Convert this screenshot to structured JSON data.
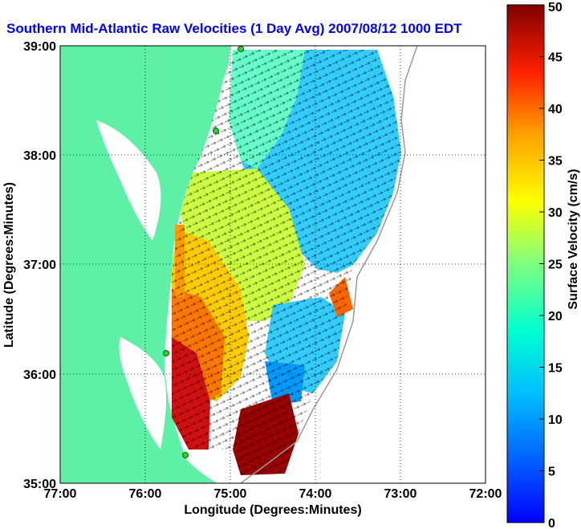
{
  "title": "Southern Mid-Atlantic Raw Velocities (1 Day Avg) 2007/08/12 1000 EDT",
  "xlabel": "Longitude (Degrees:Minutes)",
  "ylabel": "Latitude (Degrees:Minutes)",
  "x_ticks": [
    "77:00",
    "76:00",
    "75:00",
    "74:00",
    "73:00",
    "72:00"
  ],
  "y_ticks": [
    "39:00",
    "38:00",
    "37:00",
    "36:00",
    "35:00"
  ],
  "colorbar": {
    "label": "Surface Velocity (cm/s)",
    "ticks": [
      "0",
      "5",
      "10",
      "15",
      "20",
      "25",
      "30",
      "35",
      "40",
      "45",
      "50"
    ],
    "min": 0,
    "max": 50
  },
  "colors": {
    "land": "#5df0a6",
    "water": "#ffffff",
    "title": "#0000ff",
    "site_marker": "#33cc33"
  },
  "chart_data": {
    "type": "map-vector-field",
    "xlim": [
      -77,
      -72
    ],
    "ylim": [
      35,
      39
    ],
    "grid": true,
    "colorbar_range": [
      0,
      50
    ],
    "units": "cm/s"
  }
}
